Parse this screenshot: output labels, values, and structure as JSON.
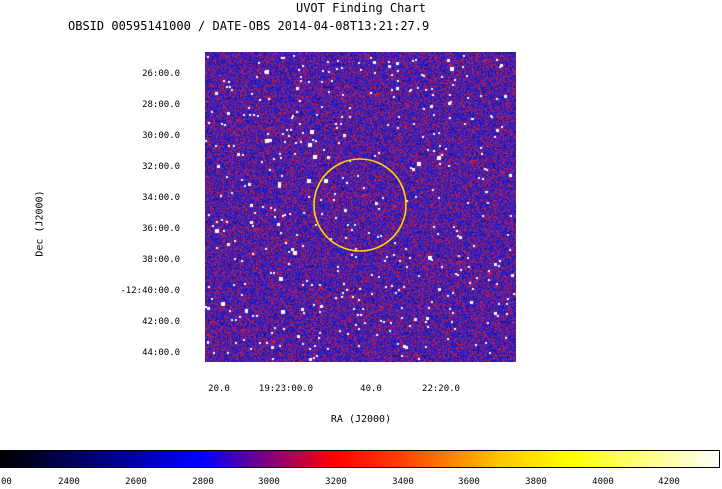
{
  "title": "UVOT Finding Chart",
  "subtitle": "OBSID 00595141000 / DATE-OBS 2014-04-08T13:21:27.9",
  "chart_data": {
    "type": "heatmap",
    "title": "UVOT Finding Chart",
    "subtitle": "OBSID 00595141000 / DATE-OBS 2014-04-08T13:21:27.9",
    "xlabel": "RA (J2000)",
    "ylabel": "Dec (J2000)",
    "x_ticks": [
      "20.0",
      "19:23:00.0",
      "40.0",
      "22:20.0"
    ],
    "y_ticks": [
      "26:00.0",
      "28:00.0",
      "30:00.0",
      "32:00.0",
      "34:00.0",
      "36:00.0",
      "38:00.0",
      "-12:40:00.0",
      "42:00.0",
      "44:00.0"
    ],
    "colorbar": {
      "ticks": [
        "00",
        "2400",
        "2600",
        "2800",
        "3000",
        "3200",
        "3400",
        "3600",
        "3800",
        "4000",
        "4200"
      ],
      "stops": [
        {
          "value": 2200,
          "color": "#000000"
        },
        {
          "value": 2800,
          "color": "#0000ff"
        },
        {
          "value": 3200,
          "color": "#ff0000"
        },
        {
          "value": 3400,
          "color": "#ff4000"
        },
        {
          "value": 3700,
          "color": "#ffc800"
        },
        {
          "value": 3900,
          "color": "#ffff00"
        },
        {
          "value": 4350,
          "color": "#ffffff"
        }
      ]
    },
    "image_colors": {
      "background": "#1e1ec8",
      "noise_red": "#c81e3c",
      "noise_purple": "#6e1eaa",
      "star": "#ffffff"
    },
    "source_circle_color": "#ffd700"
  }
}
